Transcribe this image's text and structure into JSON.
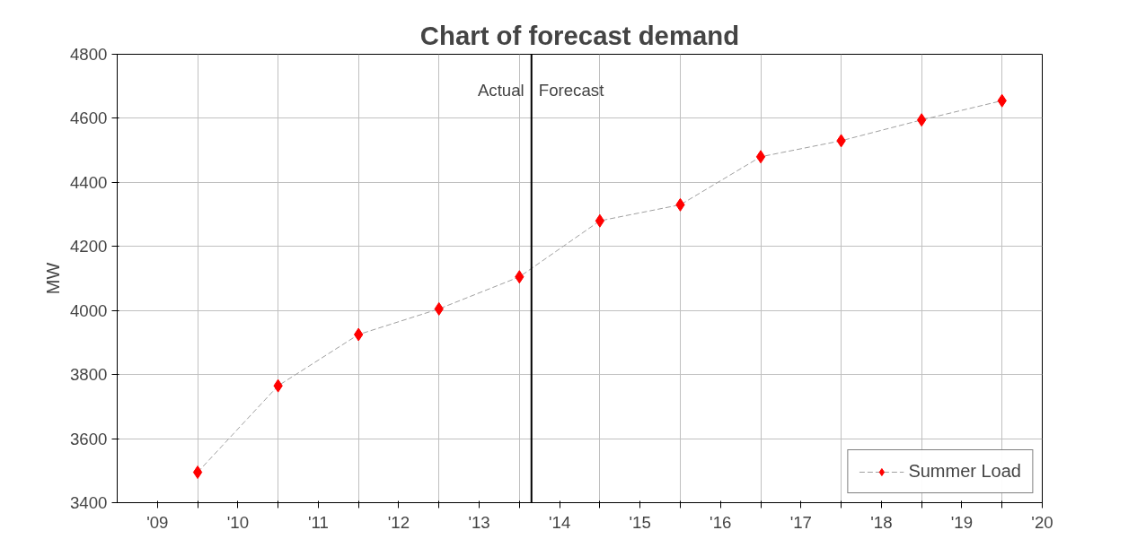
{
  "chart_data": {
    "type": "line",
    "title": "Chart of forecast demand",
    "ylabel": "MW",
    "x": [
      2009.5,
      2010.5,
      2011.5,
      2012.5,
      2013.5,
      2014.5,
      2015.5,
      2016.5,
      2017.5,
      2018.5,
      2019.5
    ],
    "series": [
      {
        "name": "Summer Load",
        "color": "#ff0000",
        "values": [
          3495,
          3765,
          3925,
          4005,
          4105,
          4280,
          4330,
          4480,
          4530,
          4595,
          4655
        ]
      }
    ],
    "xlim": [
      2008.5,
      2020
    ],
    "xticks": [
      {
        "value": 2009,
        "label": "'09"
      },
      {
        "value": 2010,
        "label": "'10"
      },
      {
        "value": 2011,
        "label": "'11"
      },
      {
        "value": 2012,
        "label": "'12"
      },
      {
        "value": 2013,
        "label": "'13"
      },
      {
        "value": 2014,
        "label": "'14"
      },
      {
        "value": 2015,
        "label": "'15"
      },
      {
        "value": 2016,
        "label": "'16"
      },
      {
        "value": 2017,
        "label": "'17"
      },
      {
        "value": 2018,
        "label": "'18"
      },
      {
        "value": 2019,
        "label": "'19"
      },
      {
        "value": 2020,
        "label": "'20"
      },
      {
        "value": 2009.5,
        "label": null
      },
      {
        "value": 2010.5,
        "label": null
      },
      {
        "value": 2011.5,
        "label": null
      },
      {
        "value": 2012.5,
        "label": null
      },
      {
        "value": 2013.5,
        "label": null
      },
      {
        "value": 2014.5,
        "label": null
      },
      {
        "value": 2015.5,
        "label": null
      },
      {
        "value": 2016.5,
        "label": null
      },
      {
        "value": 2017.5,
        "label": null
      },
      {
        "value": 2018.5,
        "label": null
      },
      {
        "value": 2019.5,
        "label": null
      }
    ],
    "ylim": [
      3400,
      4800
    ],
    "yticks": [
      3400,
      3600,
      3800,
      4000,
      4200,
      4400,
      4600,
      4800
    ],
    "ref_lines": [
      {
        "axis": "x",
        "value": 2013.65,
        "color": "#000000"
      }
    ],
    "annotations": [
      "Actual",
      "Forecast"
    ],
    "grid": true,
    "legend": "bottom right",
    "marker": "diamond",
    "line_style": "dashed"
  }
}
